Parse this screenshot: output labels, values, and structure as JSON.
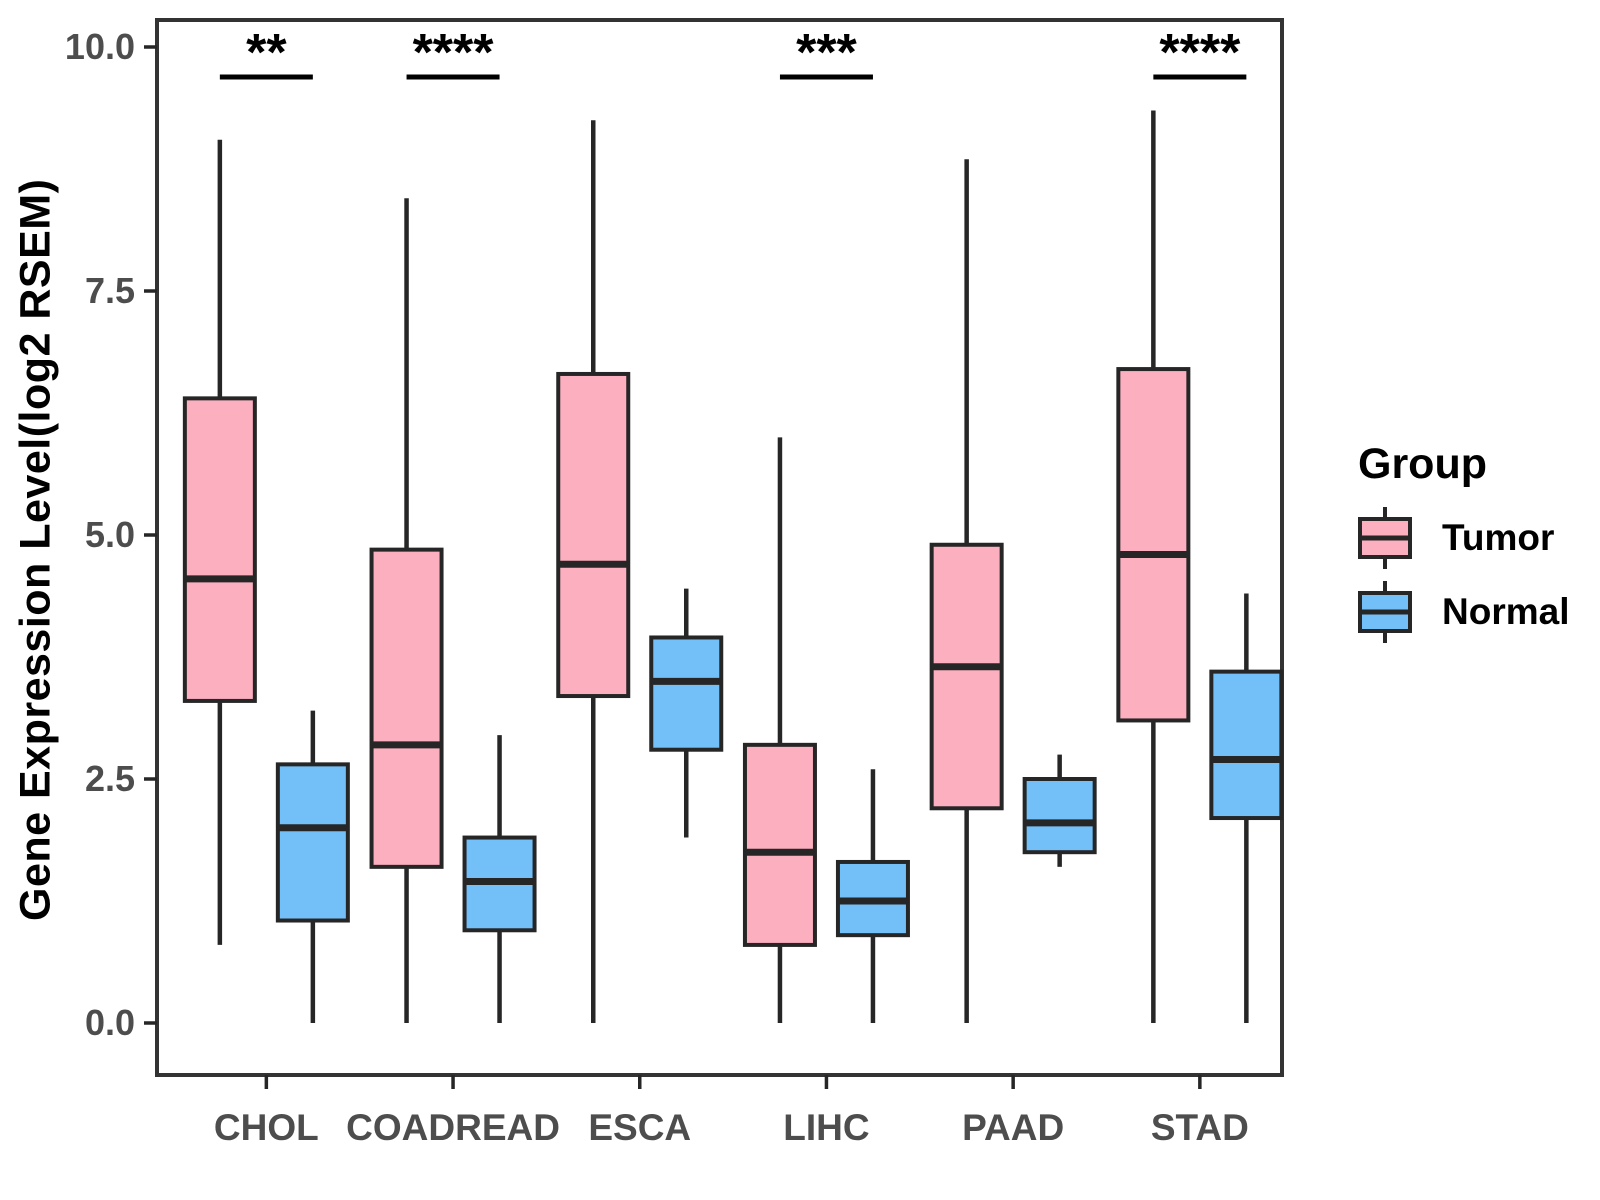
{
  "chart_data": {
    "type": "box",
    "title": "",
    "xlabel": "",
    "ylabel": "Gene Expression Level(log2 RSEM)",
    "ylim": [
      0,
      10
    ],
    "yticks": [
      0.0,
      2.5,
      5.0,
      7.5,
      10.0
    ],
    "ytick_labels": [
      "0.0",
      "2.5",
      "5.0",
      "7.5",
      "10.0"
    ],
    "categories": [
      "CHOL",
      "COADREAD",
      "ESCA",
      "LIHC",
      "PAAD",
      "STAD"
    ],
    "grid": false,
    "legend_position": "right",
    "legend": {
      "title": "Group",
      "entries": [
        {
          "label": "Tumor",
          "color": "#FCAFBF"
        },
        {
          "label": "Normal",
          "color": "#73BFF7"
        }
      ]
    },
    "significance": [
      {
        "category": "CHOL",
        "label": "**"
      },
      {
        "category": "COADREAD",
        "label": "****"
      },
      {
        "category": "LIHC",
        "label": "***"
      },
      {
        "category": "STAD",
        "label": "****"
      }
    ],
    "series": [
      {
        "name": "Tumor",
        "color": "#FCAFBF",
        "boxes": [
          {
            "category": "CHOL",
            "whisker_low": 0.8,
            "q1": 3.3,
            "median": 4.55,
            "q3": 6.4,
            "whisker_high": 9.05
          },
          {
            "category": "COADREAD",
            "whisker_low": 0.0,
            "q1": 1.6,
            "median": 2.85,
            "q3": 4.85,
            "whisker_high": 8.45
          },
          {
            "category": "ESCA",
            "whisker_low": 0.0,
            "q1": 3.35,
            "median": 4.7,
            "q3": 6.65,
            "whisker_high": 9.25
          },
          {
            "category": "LIHC",
            "whisker_low": 0.0,
            "q1": 0.8,
            "median": 1.75,
            "q3": 2.85,
            "whisker_high": 6.0
          },
          {
            "category": "PAAD",
            "whisker_low": 0.0,
            "q1": 2.2,
            "median": 3.65,
            "q3": 4.9,
            "whisker_high": 8.85
          },
          {
            "category": "STAD",
            "whisker_low": 0.0,
            "q1": 3.1,
            "median": 4.8,
            "q3": 6.7,
            "whisker_high": 9.35
          }
        ]
      },
      {
        "name": "Normal",
        "color": "#73BFF7",
        "boxes": [
          {
            "category": "CHOL",
            "whisker_low": 0.0,
            "q1": 1.05,
            "median": 2.0,
            "q3": 2.65,
            "whisker_high": 3.2
          },
          {
            "category": "COADREAD",
            "whisker_low": 0.0,
            "q1": 0.95,
            "median": 1.45,
            "q3": 1.9,
            "whisker_high": 2.95
          },
          {
            "category": "ESCA",
            "whisker_low": 1.9,
            "q1": 2.8,
            "median": 3.5,
            "q3": 3.95,
            "whisker_high": 4.45
          },
          {
            "category": "LIHC",
            "whisker_low": 0.0,
            "q1": 0.9,
            "median": 1.25,
            "q3": 1.65,
            "whisker_high": 2.6
          },
          {
            "category": "PAAD",
            "whisker_low": 1.6,
            "q1": 1.75,
            "median": 2.05,
            "q3": 2.5,
            "whisker_high": 2.75
          },
          {
            "category": "STAD",
            "whisker_low": 0.0,
            "q1": 2.1,
            "median": 2.7,
            "q3": 3.6,
            "whisker_high": 4.4
          }
        ]
      }
    ],
    "colors": {
      "box_stroke": "#262626",
      "tick_text": "#4D4D4D",
      "axis_title_text": "#000000",
      "panel_border": "#333333",
      "background": "#FFFFFF"
    }
  }
}
